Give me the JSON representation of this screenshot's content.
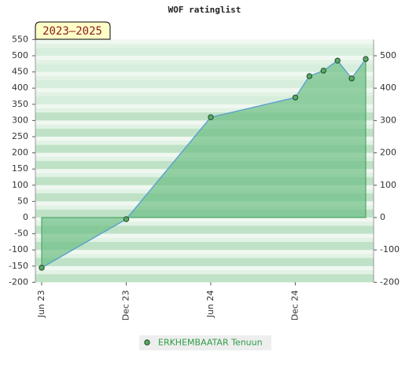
{
  "chart_data": {
    "type": "area",
    "title": "WOF ratinglist",
    "badge": "2023–2025",
    "x": [
      "2023-06",
      "2023-12",
      "2024-06",
      "2024-12",
      "2025-01",
      "2025-02",
      "2025-03",
      "2025-04",
      "2025-05"
    ],
    "xticks": [
      {
        "value": "2023-06",
        "label": "Jun 23"
      },
      {
        "value": "2023-12",
        "label": "Dec 23"
      },
      {
        "value": "2024-06",
        "label": "Jun 24"
      },
      {
        "value": "2024-12",
        "label": "Dec 24"
      }
    ],
    "series": [
      {
        "name": "ERKHEMBAATAR Tenuun",
        "color": "#5a9fd4",
        "fill": "#6dbf84",
        "marker": "#5aa865",
        "values": [
          -155,
          -5,
          310,
          371,
          437,
          454,
          485,
          430,
          490
        ]
      }
    ],
    "ylim": [
      -200,
      550
    ],
    "yticks": [
      -200,
      -150,
      -100,
      -50,
      0,
      50,
      100,
      150,
      200,
      250,
      300,
      350,
      400,
      450,
      500,
      550
    ],
    "y2lim": [
      -200,
      550
    ],
    "y2ticks": [
      -200,
      -100,
      0,
      100,
      200,
      300,
      400,
      500
    ],
    "grid": true
  }
}
